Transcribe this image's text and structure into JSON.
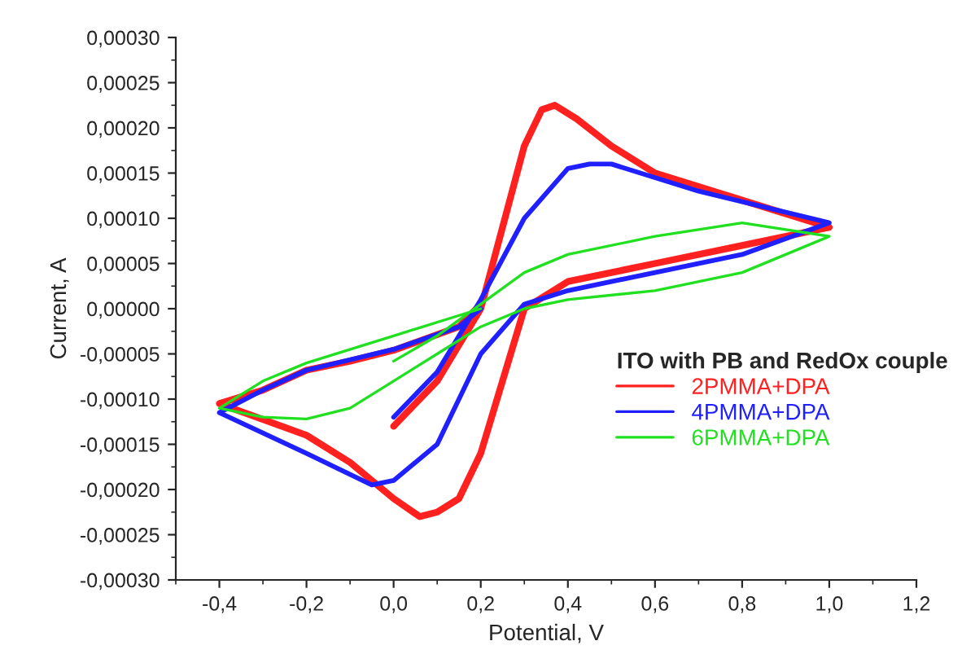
{
  "chart_data": {
    "type": "line",
    "xlabel": "Potential, V",
    "ylabel": "Current, A",
    "legend_title": "ITO with PB and RedOx couple",
    "legend": "right",
    "xlim": [
      -0.5,
      1.2
    ],
    "ylim": [
      -0.0003,
      0.0003
    ],
    "xticks": [
      {
        "value": -0.4,
        "label": "-0,4"
      },
      {
        "value": -0.2,
        "label": "-0,2"
      },
      {
        "value": 0.0,
        "label": "0,0"
      },
      {
        "value": 0.2,
        "label": "0,2"
      },
      {
        "value": 0.4,
        "label": "0,4"
      },
      {
        "value": 0.6,
        "label": "0,6"
      },
      {
        "value": 0.8,
        "label": "0,8"
      },
      {
        "value": 1.0,
        "label": "1,0"
      },
      {
        "value": 1.2,
        "label": "1,2"
      }
    ],
    "yticks": [
      {
        "value": -0.0003,
        "label": "-0,00030"
      },
      {
        "value": -0.00025,
        "label": "-0,00025"
      },
      {
        "value": -0.0002,
        "label": "-0,00020"
      },
      {
        "value": -0.00015,
        "label": "-0,00015"
      },
      {
        "value": -0.0001,
        "label": "-0,00010"
      },
      {
        "value": -5e-05,
        "label": "-0,00005"
      },
      {
        "value": 0.0,
        "label": "0,00000"
      },
      {
        "value": 5e-05,
        "label": "0,00005"
      },
      {
        "value": 0.0001,
        "label": "0,00010"
      },
      {
        "value": 0.00015,
        "label": "0,00015"
      },
      {
        "value": 0.0002,
        "label": "0,00020"
      },
      {
        "value": 0.00025,
        "label": "0,00025"
      },
      {
        "value": 0.0003,
        "label": "0,00030"
      }
    ],
    "grid": false,
    "marker": "none",
    "line_style": "solid",
    "series": [
      {
        "name": "2PMMA+DPA",
        "color": "#ff2020",
        "x": [
          0.0,
          0.1,
          0.2,
          0.25,
          0.3,
          0.34,
          0.37,
          0.42,
          0.5,
          0.6,
          0.8,
          1.0,
          0.8,
          0.6,
          0.4,
          0.3,
          0.25,
          0.2,
          0.15,
          0.1,
          0.06,
          0.0,
          -0.1,
          -0.2,
          -0.4,
          -0.3,
          -0.2,
          -0.1,
          0.0,
          0.15,
          0.2
        ],
        "values": [
          -0.00013,
          -8e-05,
          0.0,
          9e-05,
          0.00018,
          0.00022,
          0.000225,
          0.00021,
          0.00018,
          0.00015,
          0.00012,
          9e-05,
          7e-05,
          5e-05,
          3e-05,
          0.0,
          -8e-05,
          -0.00016,
          -0.00021,
          -0.000225,
          -0.00023,
          -0.00021,
          -0.00017,
          -0.00014,
          -0.000105,
          -9e-05,
          -6.8e-05,
          -5.8e-05,
          -4.6e-05,
          -2e-05,
          5e-06
        ]
      },
      {
        "name": "4PMMA+DPA",
        "color": "#2020ff",
        "x": [
          0.0,
          0.1,
          0.2,
          0.3,
          0.4,
          0.45,
          0.5,
          0.7,
          1.0,
          0.8,
          0.6,
          0.4,
          0.3,
          0.2,
          0.15,
          0.1,
          0.0,
          -0.05,
          -0.2,
          -0.4,
          -0.3,
          -0.2,
          0.0,
          0.15,
          0.2
        ],
        "values": [
          -0.00012,
          -7e-05,
          1e-05,
          0.0001,
          0.000155,
          0.00016,
          0.00016,
          0.00013,
          9.5e-05,
          6e-05,
          4e-05,
          2e-05,
          5e-06,
          -5e-05,
          -0.0001,
          -0.00015,
          -0.00019,
          -0.000195,
          -0.00016,
          -0.000115,
          -9e-05,
          -6.8e-05,
          -4.5e-05,
          -2e-05,
          0.0
        ]
      },
      {
        "name": "6PMMA+DPA",
        "color": "#20e020",
        "x": [
          0.0,
          0.1,
          0.2,
          0.3,
          0.4,
          0.6,
          0.8,
          1.0,
          0.8,
          0.6,
          0.4,
          0.3,
          0.2,
          0.1,
          0.0,
          -0.1,
          -0.2,
          -0.3,
          -0.4,
          -0.3,
          -0.2,
          0.0,
          0.2
        ],
        "values": [
          -5.8e-05,
          -3e-05,
          5e-06,
          4e-05,
          6e-05,
          8e-05,
          9.5e-05,
          8e-05,
          4e-05,
          2e-05,
          1e-05,
          0.0,
          -2e-05,
          -5e-05,
          -8e-05,
          -0.00011,
          -0.000122,
          -0.00012,
          -0.00011,
          -8e-05,
          -6e-05,
          -3e-05,
          0.0
        ]
      }
    ]
  }
}
